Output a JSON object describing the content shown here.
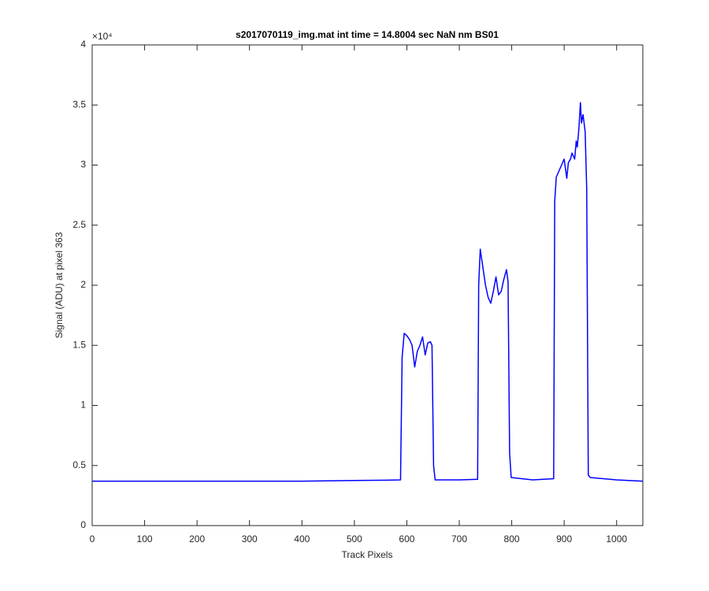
{
  "chart_data": {
    "type": "line",
    "title": "s2017070119_img.mat int time = 14.8004 sec  NaN nm BS01",
    "x_label": "Track Pixels",
    "y_label": "Signal (ADU) at pixel 363",
    "y_exponent": "×10⁴",
    "xlim": [
      0,
      1050
    ],
    "ylim": [
      0,
      40000
    ],
    "xticks": [
      0,
      100,
      200,
      300,
      400,
      500,
      600,
      700,
      800,
      900,
      1000
    ],
    "yticks": [
      0,
      {
        "value": 5000,
        "label": "0.5"
      },
      {
        "value": 10000,
        "label": "1"
      },
      {
        "value": 15000,
        "label": "1.5"
      },
      {
        "value": 20000,
        "label": "2"
      },
      {
        "value": 25000,
        "label": "2.5"
      },
      {
        "value": 30000,
        "label": "3"
      },
      {
        "value": 35000,
        "label": "3.5"
      },
      {
        "value": 40000,
        "label": "4"
      }
    ],
    "series": [
      {
        "name": "signal",
        "color": "#0000ff",
        "x": [
          0,
          100,
          200,
          300,
          400,
          500,
          560,
          588,
          591,
          595,
          600,
          605,
          610,
          615,
          620,
          625,
          630,
          635,
          640,
          645,
          648,
          651,
          654,
          700,
          735,
          737,
          740,
          745,
          750,
          755,
          760,
          765,
          770,
          775,
          780,
          785,
          790,
          793,
          796,
          799,
          840,
          880,
          882,
          885,
          890,
          895,
          900,
          905,
          908,
          912,
          915,
          920,
          923,
          925,
          928,
          931,
          933,
          936,
          940,
          943,
          946,
          950,
          1000,
          1050
        ],
        "values": [
          3700,
          3700,
          3700,
          3700,
          3700,
          3750,
          3780,
          3800,
          14000,
          16000,
          15800,
          15500,
          15000,
          13200,
          14500,
          15000,
          15700,
          14200,
          15200,
          15300,
          15000,
          5000,
          3800,
          3800,
          3850,
          20000,
          23000,
          21500,
          20000,
          19000,
          18500,
          19500,
          20700,
          19200,
          19500,
          20500,
          21300,
          20300,
          6000,
          4000,
          3800,
          3900,
          27000,
          29000,
          29500,
          30000,
          30500,
          28900,
          30200,
          30500,
          31000,
          30500,
          32000,
          31500,
          33000,
          35200,
          33500,
          34200,
          32800,
          28000,
          4200,
          4000,
          3800,
          3700
        ]
      }
    ]
  }
}
